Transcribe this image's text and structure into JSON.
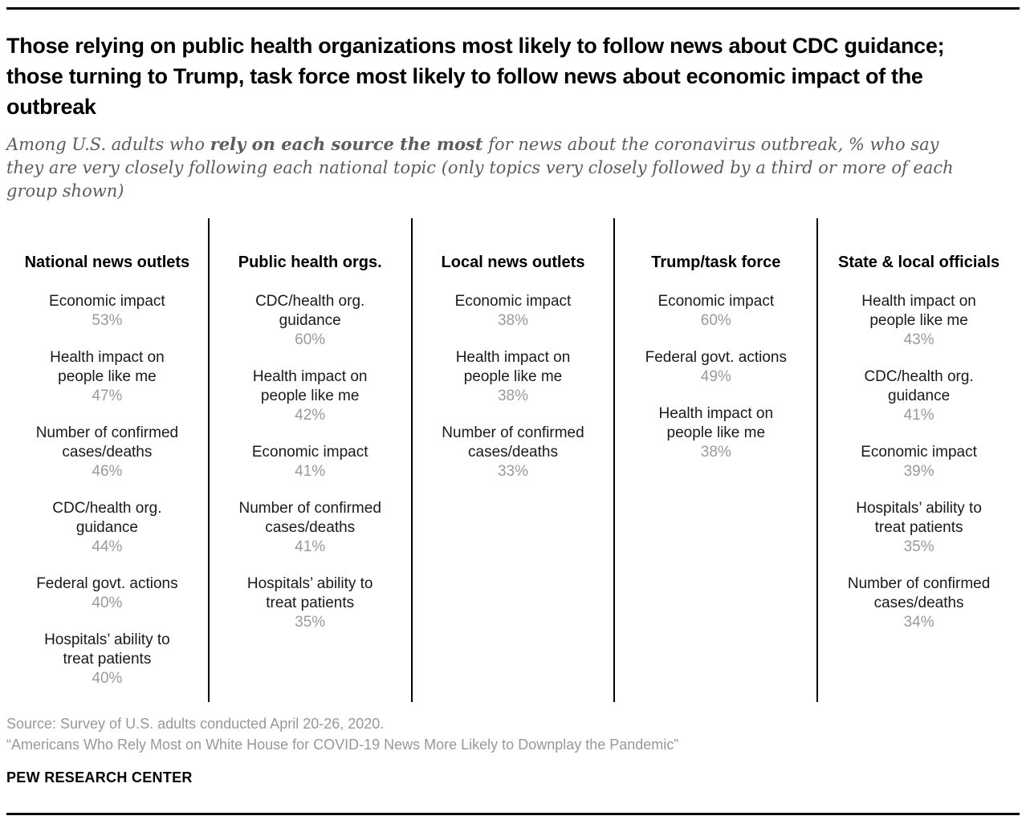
{
  "header": {
    "title": "Those relying on public health organizations most likely to follow news about CDC guidance; those turning to Trump, task force most likely to follow news about economic impact of the outbreak",
    "subtitle_prefix": "Among U.S. adults who ",
    "subtitle_bold": "rely on each source the most",
    "subtitle_suffix": " for news about the coronavirus outbreak, % who say they are very closely following each national topic (only topics very closely followed by a third or more of each group shown)"
  },
  "chart_data": {
    "type": "table",
    "value_unit": "%",
    "columns": [
      {
        "header": "National news outlets",
        "items": [
          {
            "label": "Economic impact",
            "value": 53,
            "pct": "53%"
          },
          {
            "label": "Health impact on people like me",
            "value": 47,
            "pct": "47%"
          },
          {
            "label": "Number of confirmed cases/deaths",
            "value": 46,
            "pct": "46%"
          },
          {
            "label": "CDC/health org. guidance",
            "value": 44,
            "pct": "44%"
          },
          {
            "label": "Federal govt. actions",
            "value": 40,
            "pct": "40%"
          },
          {
            "label": "Hospitals’ ability to treat patients",
            "value": 40,
            "pct": "40%"
          }
        ]
      },
      {
        "header": "Public health orgs.",
        "items": [
          {
            "label": "CDC/health org. guidance",
            "value": 60,
            "pct": "60%"
          },
          {
            "label": "Health impact on people like me",
            "value": 42,
            "pct": "42%"
          },
          {
            "label": "Economic impact",
            "value": 41,
            "pct": "41%"
          },
          {
            "label": "Number of confirmed cases/deaths",
            "value": 41,
            "pct": "41%"
          },
          {
            "label": "Hospitals’ ability to treat patients",
            "value": 35,
            "pct": "35%"
          }
        ]
      },
      {
        "header": "Local news outlets",
        "items": [
          {
            "label": "Economic impact",
            "value": 38,
            "pct": "38%"
          },
          {
            "label": "Health impact on people like me",
            "value": 38,
            "pct": "38%"
          },
          {
            "label": "Number of confirmed cases/deaths",
            "value": 33,
            "pct": "33%"
          }
        ]
      },
      {
        "header": "Trump/task force",
        "items": [
          {
            "label": "Economic impact",
            "value": 60,
            "pct": "60%"
          },
          {
            "label": "Federal govt. actions",
            "value": 49,
            "pct": "49%"
          },
          {
            "label": "Health impact on people like me",
            "value": 38,
            "pct": "38%"
          }
        ]
      },
      {
        "header": "State & local officials",
        "items": [
          {
            "label": "Health impact on people like me",
            "value": 43,
            "pct": "43%"
          },
          {
            "label": "CDC/health org. guidance",
            "value": 41,
            "pct": "41%"
          },
          {
            "label": "Economic impact",
            "value": 39,
            "pct": "39%"
          },
          {
            "label": "Hospitals’ ability to treat patients",
            "value": 35,
            "pct": "35%"
          },
          {
            "label": "Number of confirmed cases/deaths",
            "value": 34,
            "pct": "34%"
          }
        ]
      }
    ]
  },
  "footer": {
    "source": "Source: Survey of U.S. adults conducted April 20-26, 2020.",
    "report_title": "“Americans Who Rely Most on White House for COVID-19 News More Likely to Downplay the Pandemic”",
    "brand": "PEW RESEARCH CENTER"
  },
  "colors": {
    "title": "#000000",
    "subtitle": "#5e5c59",
    "topic_label": "#1a1a1a",
    "percent": "#9a9a9a",
    "source_text": "#9b9893",
    "rule": "#000000"
  }
}
